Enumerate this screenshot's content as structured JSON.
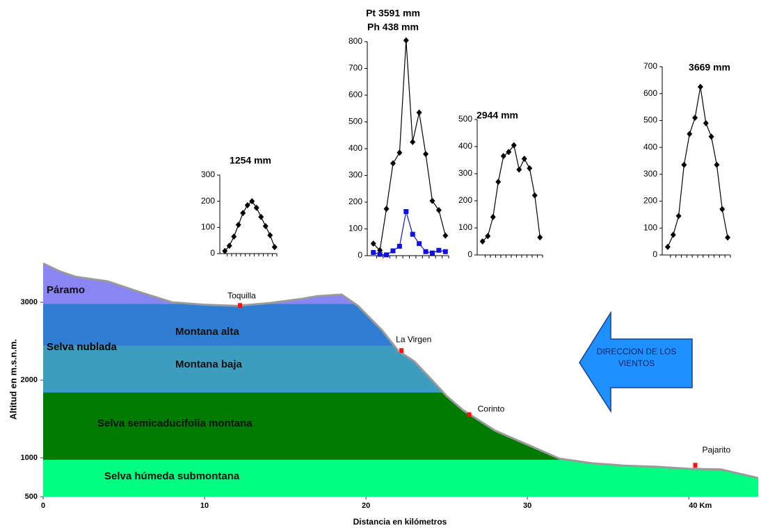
{
  "chart_data": [
    {
      "type": "area",
      "xlabel": "Distancia en kilómetros",
      "ylabel": "Altitud en m.s.n.m.",
      "x": [
        0,
        1,
        2,
        4,
        6,
        8,
        10,
        12,
        14,
        16,
        17,
        18.5,
        19.5,
        21,
        22,
        23,
        24,
        25,
        26,
        28,
        30,
        32,
        34,
        36,
        38,
        40,
        42,
        44.3
      ],
      "values": [
        3500,
        3400,
        3330,
        3270,
        3130,
        3000,
        2970,
        2955,
        2990,
        3045,
        3080,
        3100,
        2955,
        2640,
        2375,
        2240,
        2020,
        1795,
        1616,
        1350,
        1170,
        990,
        930,
        900,
        885,
        860,
        850,
        740
      ],
      "xlim": [
        0,
        44.3
      ],
      "ylim": [
        500,
        3520
      ],
      "xticks": [
        0,
        10,
        20,
        30,
        {
          "value": 40,
          "label": "40 Km"
        }
      ],
      "yticks": [
        500,
        1000,
        2000,
        3000
      ],
      "zones": [
        {
          "name": "Selva húmeda submontana",
          "from": 500,
          "color": "#00ff80"
        },
        {
          "name": "Selva semicaducifolia montana",
          "from": 975,
          "color": "#007a00"
        },
        {
          "name": "Montana baja",
          "from": 1840,
          "color": "#3e9dbf"
        },
        {
          "name": "Montana alta",
          "from": 2440,
          "color": "#2f7dd2"
        },
        {
          "name": "Páramo",
          "from": 2980,
          "color": "#8a85f5"
        }
      ],
      "group_label": "Selva nublada",
      "sites": [
        {
          "name": "Toquilla",
          "x": 12.2,
          "elevation": 2955
        },
        {
          "name": "La Virgen",
          "x": 22.2,
          "elevation": 2375
        },
        {
          "name": "Corinto",
          "x": 26.4,
          "elevation": 1550
        },
        {
          "name": "Pajarito",
          "x": 40.4,
          "elevation": 900
        }
      ],
      "wind_label": [
        "DIRECCION DE LOS",
        "VIENTOS"
      ]
    },
    {
      "type": "line",
      "title": "1254 mm",
      "categories": [
        null,
        null,
        null,
        null,
        null,
        null,
        null,
        null,
        null,
        null,
        null,
        null
      ],
      "ylim": [
        0,
        300
      ],
      "yticks": [
        0,
        100,
        200,
        300
      ],
      "series": [
        {
          "color": "#000000",
          "marker": "diamond",
          "values": [
            10,
            30,
            65,
            110,
            155,
            185,
            200,
            175,
            140,
            105,
            70,
            25
          ]
        }
      ]
    },
    {
      "type": "line",
      "title": "Pt 3591 mm",
      "subtitle": "Ph 438 mm",
      "categories": [
        null,
        null,
        null,
        null,
        null,
        null,
        null,
        null,
        null,
        null,
        null,
        null
      ],
      "ylim": [
        0,
        800
      ],
      "yticks": [
        0,
        100,
        200,
        300,
        400,
        500,
        600,
        700,
        800
      ],
      "series": [
        {
          "color": "#000000",
          "marker": "diamond",
          "values": [
            45,
            20,
            175,
            345,
            385,
            805,
            425,
            535,
            380,
            205,
            170,
            75
          ]
        },
        {
          "color": "#1010e0",
          "marker": "square",
          "values": [
            12,
            5,
            3,
            18,
            35,
            165,
            80,
            45,
            15,
            10,
            20,
            15
          ]
        }
      ]
    },
    {
      "type": "line",
      "title": "2944 mm",
      "categories": [
        null,
        null,
        null,
        null,
        null,
        null,
        null,
        null,
        null,
        null,
        null,
        null
      ],
      "ylim": [
        0,
        500
      ],
      "yticks": [
        0,
        100,
        200,
        300,
        400,
        500
      ],
      "series": [
        {
          "color": "#000000",
          "marker": "diamond",
          "values": [
            50,
            70,
            140,
            270,
            365,
            380,
            405,
            315,
            355,
            320,
            220,
            65
          ]
        }
      ]
    },
    {
      "type": "line",
      "title": "3669 mm",
      "categories": [
        null,
        null,
        null,
        null,
        null,
        null,
        null,
        null,
        null,
        null,
        null,
        null
      ],
      "ylim": [
        0,
        700
      ],
      "yticks": [
        0,
        100,
        200,
        300,
        400,
        500,
        600,
        700
      ],
      "series": [
        {
          "color": "#000000",
          "marker": "diamond",
          "values": [
            30,
            75,
            145,
            335,
            450,
            510,
            625,
            490,
            440,
            335,
            170,
            65
          ]
        }
      ]
    }
  ]
}
